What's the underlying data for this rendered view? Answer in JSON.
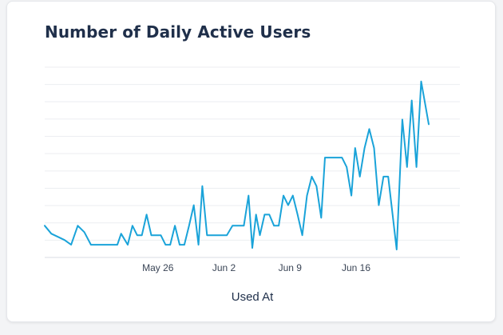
{
  "chart_data": {
    "type": "line",
    "title": "Number of Daily Active Users",
    "xlabel": "Used At",
    "ylabel": "",
    "x_ticks": [
      {
        "label": "May 26",
        "day": 12
      },
      {
        "label": "Jun 2",
        "day": 19
      },
      {
        "label": "Jun 9",
        "day": 26
      },
      {
        "label": "Jun 16",
        "day": 33
      }
    ],
    "xlim": [
      0,
      44
    ],
    "ylim": [
      0,
      12
    ],
    "grid": true,
    "series": [
      {
        "color": "#1aa3d9",
        "points": [
          [
            0,
            2
          ],
          [
            0.7,
            1.5
          ],
          [
            1.4,
            1.3
          ],
          [
            2.1,
            1.1
          ],
          [
            2.8,
            0.8
          ],
          [
            3.5,
            2
          ],
          [
            4.2,
            1.6
          ],
          [
            4.9,
            0.8
          ],
          [
            5.6,
            0.8
          ],
          [
            6.3,
            0.8
          ],
          [
            7.0,
            0.8
          ],
          [
            7.7,
            0.8
          ],
          [
            8.1,
            1.5
          ],
          [
            8.8,
            0.8
          ],
          [
            9.3,
            2
          ],
          [
            9.8,
            1.4
          ],
          [
            10.3,
            1.4
          ],
          [
            10.8,
            2.7
          ],
          [
            11.3,
            1.4
          ],
          [
            11.8,
            1.4
          ],
          [
            12.3,
            1.4
          ],
          [
            12.8,
            0.8
          ],
          [
            13.3,
            0.8
          ],
          [
            13.8,
            2
          ],
          [
            14.3,
            0.8
          ],
          [
            14.8,
            0.8
          ],
          [
            15.3,
            2
          ],
          [
            15.8,
            3.3
          ],
          [
            16.3,
            0.8
          ],
          [
            16.7,
            4.5
          ],
          [
            17.2,
            1.4
          ],
          [
            17.7,
            1.4
          ],
          [
            18.2,
            1.4
          ],
          [
            18.7,
            1.4
          ],
          [
            19.3,
            1.4
          ],
          [
            19.9,
            2
          ],
          [
            20.5,
            2
          ],
          [
            21.1,
            2
          ],
          [
            21.6,
            3.9
          ],
          [
            22.0,
            0.6
          ],
          [
            22.4,
            2.7
          ],
          [
            22.8,
            1.4
          ],
          [
            23.3,
            2.7
          ],
          [
            23.8,
            2.7
          ],
          [
            24.3,
            2
          ],
          [
            24.8,
            2
          ],
          [
            25.3,
            3.9
          ],
          [
            25.8,
            3.3
          ],
          [
            26.3,
            3.9
          ],
          [
            26.8,
            2.7
          ],
          [
            27.3,
            1.4
          ],
          [
            27.8,
            3.9
          ],
          [
            28.3,
            5.1
          ],
          [
            28.8,
            4.5
          ],
          [
            29.3,
            2.5
          ],
          [
            29.7,
            6.3
          ],
          [
            30.3,
            6.3
          ],
          [
            30.9,
            6.3
          ],
          [
            31.5,
            6.3
          ],
          [
            32.0,
            5.7
          ],
          [
            32.5,
            3.9
          ],
          [
            32.9,
            6.9
          ],
          [
            33.4,
            5.1
          ],
          [
            33.9,
            6.9
          ],
          [
            34.4,
            8.1
          ],
          [
            34.9,
            6.9
          ],
          [
            35.4,
            3.3
          ],
          [
            35.9,
            5.1
          ],
          [
            36.4,
            5.1
          ],
          [
            37.3,
            0.5
          ],
          [
            37.9,
            8.7
          ],
          [
            38.4,
            5.7
          ],
          [
            38.9,
            9.9
          ],
          [
            39.4,
            5.7
          ],
          [
            39.9,
            11.1
          ],
          [
            40.7,
            8.4
          ]
        ]
      }
    ]
  }
}
